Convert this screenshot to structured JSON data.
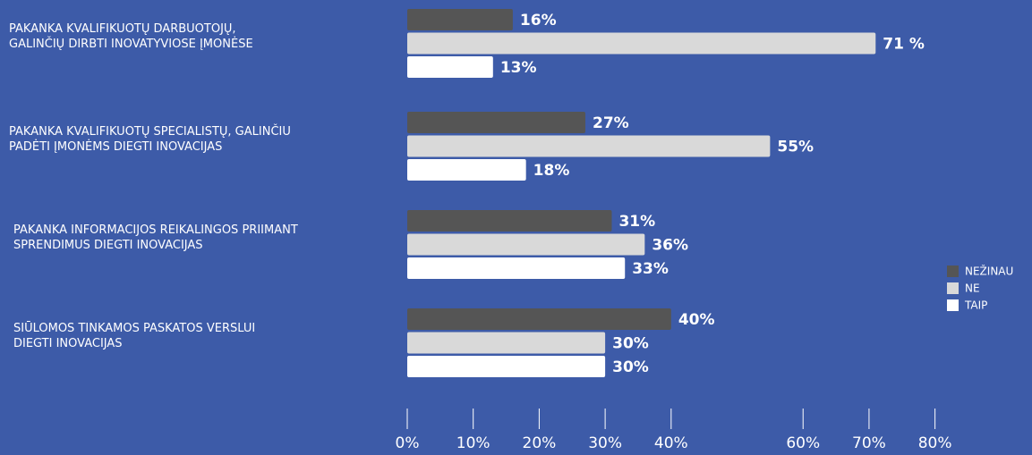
{
  "chart_data": {
    "type": "hbar",
    "categories": [
      "PAKANKA KVALIFIKUOTŲ DARBUOTOJŲ,\nGALINČIŲ DIRBTI INOVATYVIOSE ĮMONĖSE",
      "PAKANKA KVALIFIKUOTŲ SPECIALISTŲ, GALINČIU\nPADĖTI ĮMONĖMS DIEGTI INOVACIJAS",
      "PAKANKA INFORMACIJOS REIKALINGOS PRIIMANT\nSPRENDIMUS DIEGTI INOVACIJAS",
      "SIŪLOMOS TINKAMOS PASKATOS VERSLUI\nDIEGTI INOVACIJAS"
    ],
    "series": [
      {
        "name": "NEŽINAU",
        "color": "#555555",
        "values": [
          16,
          27,
          31,
          40
        ],
        "value_labels": [
          "16%",
          "27%",
          "31%",
          "40%"
        ]
      },
      {
        "name": "NE",
        "color": "#d9d9d9",
        "values": [
          71,
          55,
          36,
          30
        ],
        "value_labels": [
          "71 %",
          "55%",
          "36%",
          "30%"
        ]
      },
      {
        "name": "TAIP",
        "color": "#ffffff",
        "values": [
          13,
          18,
          33,
          30
        ],
        "value_labels": [
          "13%",
          "18%",
          "33%",
          "30%"
        ]
      }
    ],
    "xlim": [
      0,
      81
    ],
    "xticks": [
      {
        "value": 0,
        "label": "0%"
      },
      {
        "value": 10,
        "label": "10%"
      },
      {
        "value": 20,
        "label": "20%"
      },
      {
        "value": 30,
        "label": "30%"
      },
      {
        "value": 40,
        "label": "40%"
      },
      {
        "value": 60,
        "label": "60%"
      },
      {
        "value": 70,
        "label": "70%"
      },
      {
        "value": 80,
        "label": "80%"
      }
    ],
    "legend": "right"
  }
}
